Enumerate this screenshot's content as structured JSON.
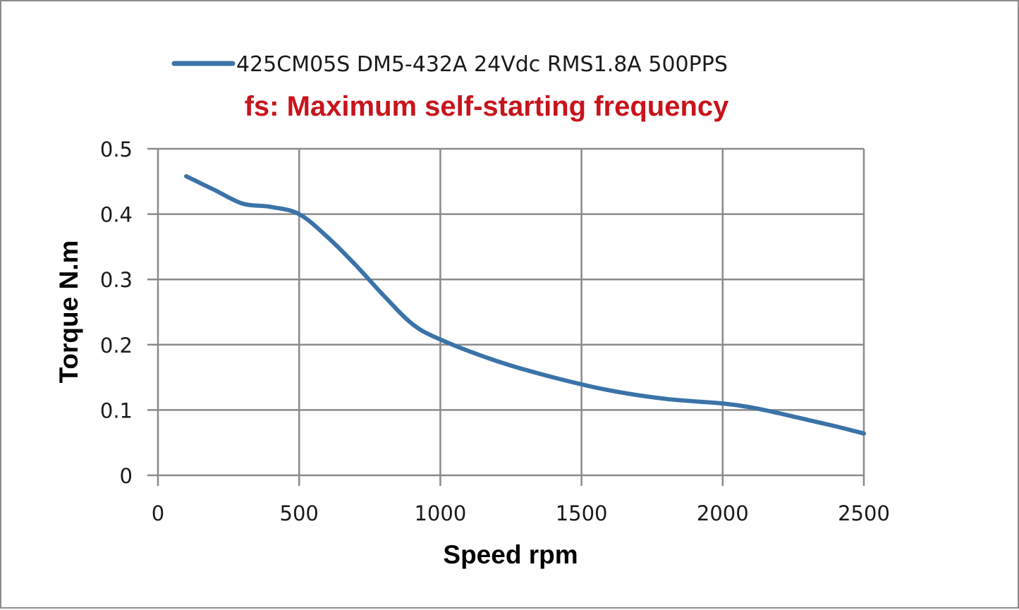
{
  "colors": {
    "series": "#3b73a8",
    "grid": "#8a8a8a",
    "annotation": "#c8141c"
  },
  "chart_data": {
    "type": "line",
    "annotation": "fs: Maximum self-starting frequency",
    "xlabel": "Speed rpm",
    "ylabel": "Torque N.m",
    "xlim": [
      0,
      2500
    ],
    "ylim": [
      0,
      0.5
    ],
    "x_ticks": [
      0,
      500,
      1000,
      1500,
      2000,
      2500
    ],
    "y_ticks": [
      0,
      0.1,
      0.2,
      0.3,
      0.4,
      0.5
    ],
    "x_tick_labels": [
      "0",
      "500",
      "1000",
      "1500",
      "2000",
      "2500"
    ],
    "y_tick_labels": [
      "0",
      "0.1",
      "0.2",
      "0.3",
      "0.4",
      "0.5"
    ],
    "grid": true,
    "legend": "top",
    "series": [
      {
        "name": "425CM05S DM5-432A 24Vdc RMS1.8A 500PPS",
        "x": [
          100,
          200,
          300,
          400,
          500,
          600,
          700,
          800,
          900,
          1000,
          1200,
          1400,
          1600,
          1800,
          2000,
          2100,
          2200,
          2300,
          2400,
          2500
        ],
        "y": [
          0.458,
          0.437,
          0.416,
          0.411,
          0.4,
          0.365,
          0.322,
          0.275,
          0.232,
          0.208,
          0.175,
          0.15,
          0.13,
          0.117,
          0.11,
          0.104,
          0.095,
          0.085,
          0.075,
          0.064
        ]
      }
    ]
  }
}
